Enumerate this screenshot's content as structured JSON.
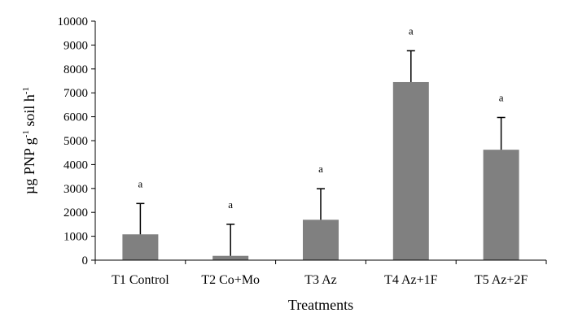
{
  "chart_data": {
    "type": "bar",
    "categories": [
      "T1 Control",
      "T2 Co+Mo",
      "T3 Az",
      "T4 Az+1F",
      "T5 Az+2F"
    ],
    "values": [
      1080,
      180,
      1690,
      7450,
      4620
    ],
    "error_plus": [
      1290,
      1320,
      1300,
      1310,
      1350
    ],
    "significance": [
      "a",
      "a",
      "a",
      "a",
      "a"
    ],
    "xlabel": "Treatments",
    "ylabel": {
      "prefix": "µg PNP g",
      "sup1": "-1",
      "middle": " soil h",
      "sup2": "-1"
    },
    "ylim": [
      0,
      10000
    ],
    "yticks": [
      0,
      1000,
      2000,
      3000,
      4000,
      5000,
      6000,
      7000,
      8000,
      9000,
      10000
    ],
    "bar_color": "#808080",
    "grid": false,
    "legend": "none"
  }
}
